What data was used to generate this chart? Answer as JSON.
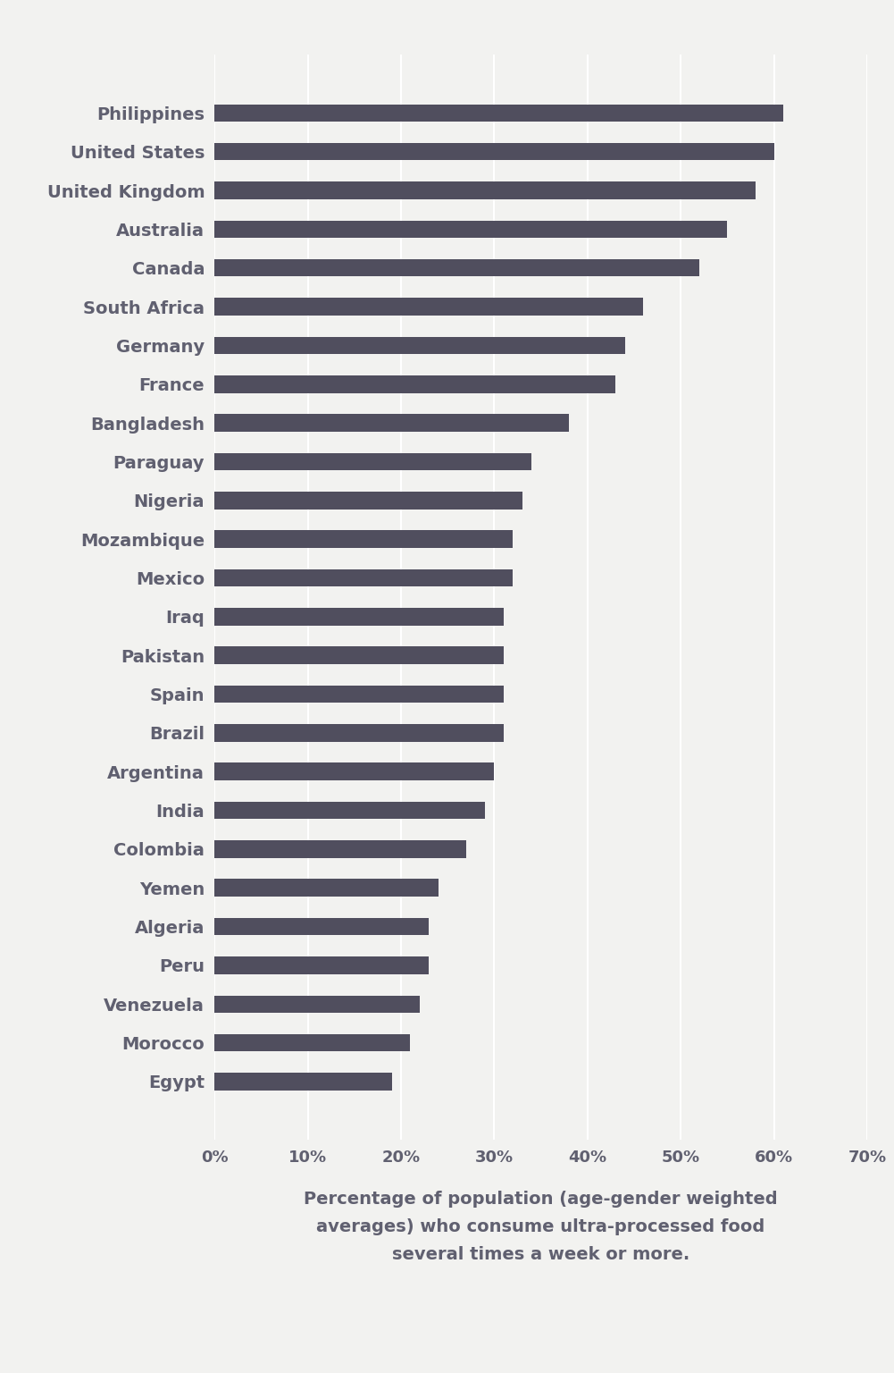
{
  "countries": [
    "Philippines",
    "United States",
    "United Kingdom",
    "Australia",
    "Canada",
    "South Africa",
    "Germany",
    "France",
    "Bangladesh",
    "Paraguay",
    "Nigeria",
    "Mozambique",
    "Mexico",
    "Iraq",
    "Pakistan",
    "Spain",
    "Brazil",
    "Argentina",
    "India",
    "Colombia",
    "Yemen",
    "Algeria",
    "Peru",
    "Venezuela",
    "Morocco",
    "Egypt"
  ],
  "values": [
    61,
    60,
    58,
    55,
    52,
    46,
    44,
    43,
    38,
    34,
    33,
    32,
    32,
    31,
    31,
    31,
    31,
    30,
    29,
    27,
    24,
    23,
    23,
    22,
    21,
    19
  ],
  "bar_color": "#504e5e",
  "background_color": "#f2f2f0",
  "xlabel": "Percentage of population (age-gender weighted\naverages) who consume ultra-processed food\nseveral times a week or more.",
  "xlim": [
    0,
    70
  ],
  "xtick_labels": [
    "0%",
    "10%",
    "20%",
    "30%",
    "40%",
    "50%",
    "60%",
    "70%"
  ],
  "xtick_values": [
    0,
    10,
    20,
    30,
    40,
    50,
    60,
    70
  ],
  "bar_height": 0.45,
  "label_fontsize": 14,
  "tick_fontsize": 13,
  "xlabel_fontsize": 14,
  "grid_color": "#ffffff",
  "text_color": "#606070"
}
